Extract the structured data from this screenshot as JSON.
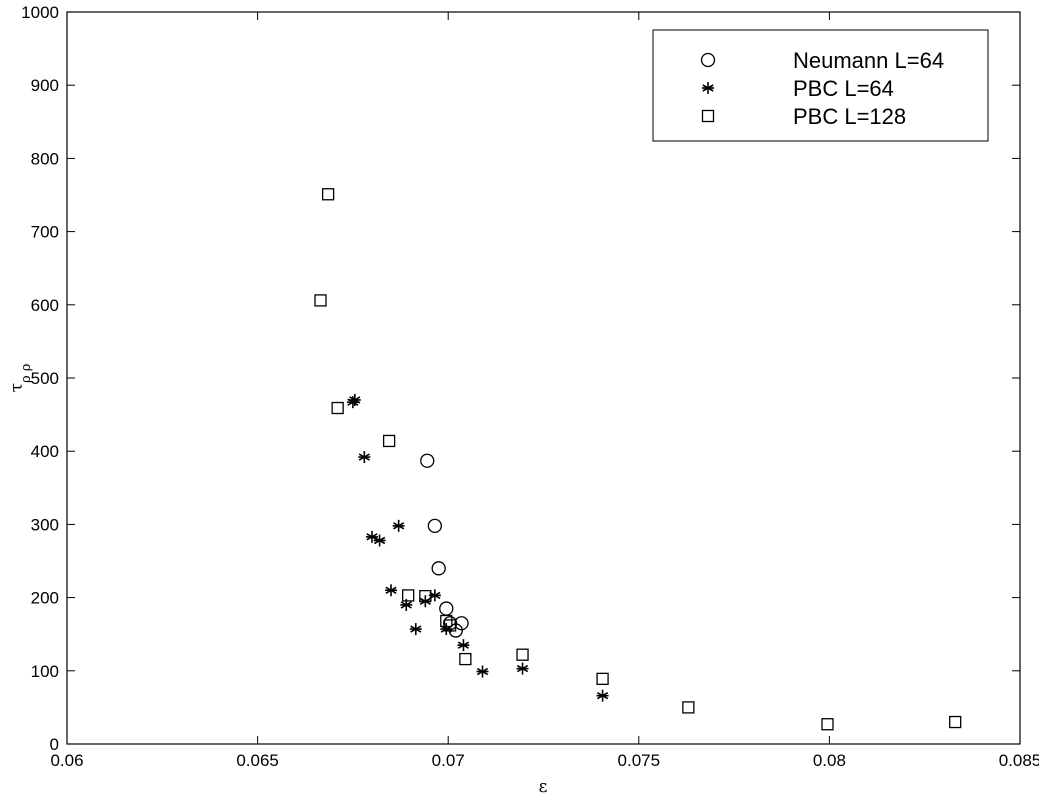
{
  "chart_data": {
    "type": "scatter",
    "xlabel": "ε",
    "ylabel_main": "τ",
    "ylabel_sub": "ρ ρ",
    "xlim": [
      0.06,
      0.085
    ],
    "ylim": [
      0,
      1000
    ],
    "xticks": [
      0.06,
      0.065,
      0.07,
      0.075,
      0.08,
      0.085
    ],
    "xtick_labels": [
      "0.06",
      "0.065",
      "0.07",
      "0.075",
      "0.08",
      "0.085"
    ],
    "yticks": [
      0,
      100,
      200,
      300,
      400,
      500,
      600,
      700,
      800,
      900,
      1000
    ],
    "ytick_labels": [
      "0",
      "100",
      "200",
      "300",
      "400",
      "500",
      "600",
      "700",
      "800",
      "900",
      "1000"
    ],
    "grid": false,
    "legend_position": "top-right",
    "series": [
      {
        "name": "Neumann L=64",
        "marker": "circle",
        "x": [
          0.06945,
          0.06965,
          0.06975,
          0.06995,
          0.07005,
          0.0702,
          0.07035
        ],
        "y": [
          387,
          298,
          240,
          185,
          165,
          155,
          165
        ]
      },
      {
        "name": "PBC L=64",
        "marker": "star",
        "x": [
          0.0675,
          0.06755,
          0.0678,
          0.068,
          0.0682,
          0.0685,
          0.0687,
          0.0689,
          0.06915,
          0.0694,
          0.06965,
          0.06995,
          0.0704,
          0.0709,
          0.07195,
          0.07405
        ],
        "y": [
          467,
          470,
          392,
          283,
          278,
          210,
          298,
          190,
          157,
          195,
          203,
          157,
          135,
          99,
          103,
          66
        ]
      },
      {
        "name": "PBC L=128",
        "marker": "square",
        "x": [
          0.06665,
          0.06685,
          0.0671,
          0.06845,
          0.06895,
          0.0694,
          0.06995,
          0.07005,
          0.07045,
          0.07195,
          0.07405,
          0.0763,
          0.07995,
          0.0833
        ],
        "y": [
          606,
          751,
          459,
          414,
          203,
          202,
          168,
          162,
          116,
          122,
          89,
          50,
          27,
          30
        ]
      }
    ]
  }
}
